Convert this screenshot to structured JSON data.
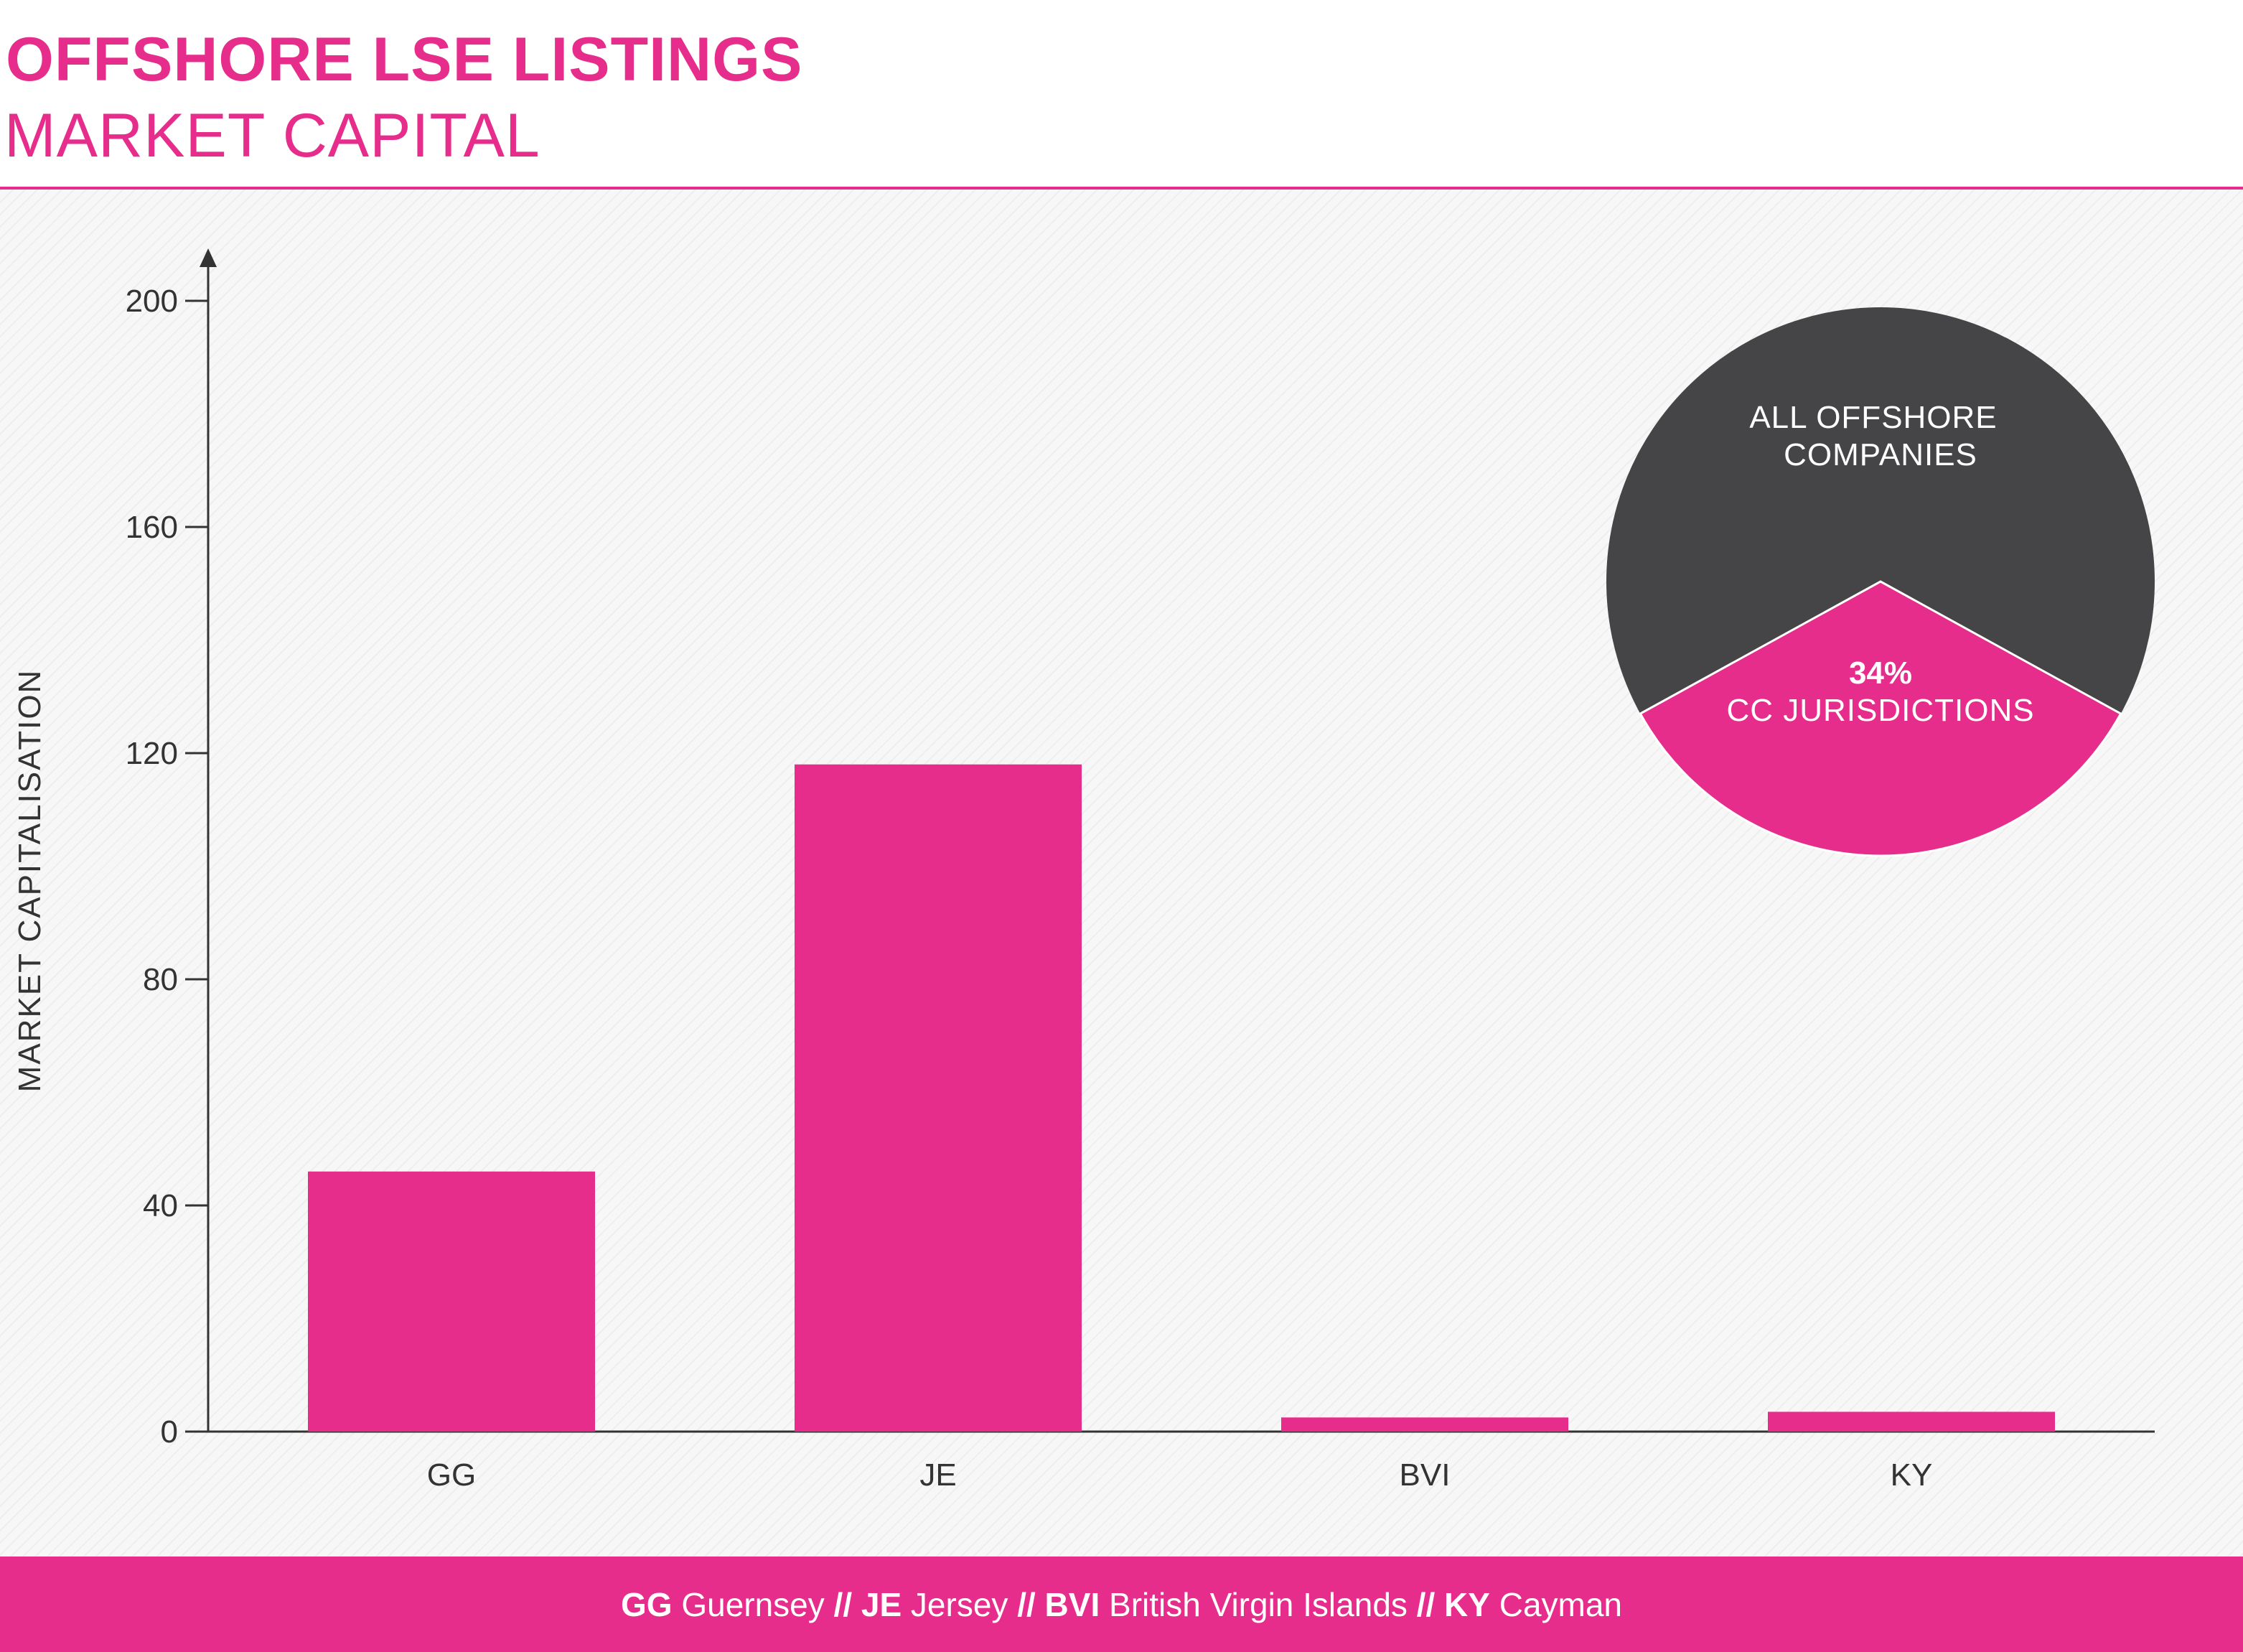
{
  "colors": {
    "accent": "#e62d8b",
    "dark": "#454547",
    "text": "#333333",
    "axis": "#333333"
  },
  "chart_data": {
    "type": "bar",
    "title": "OFFSHORE LSE LISTINGS",
    "subtitle": "MARKET CAPITAL",
    "ylabel": "MARKET CAPITALISATION",
    "xlabel": "",
    "categories": [
      "GG",
      "JE",
      "BVI",
      "KY"
    ],
    "values": [
      46,
      118,
      2.5,
      3.5
    ],
    "ylim": [
      0,
      200
    ],
    "yticks": [
      0,
      40,
      80,
      120,
      160,
      200
    ],
    "grid": false,
    "inset_pie": {
      "type": "pie",
      "slices": [
        {
          "label": "ALL OFFSHORE COMPANIES",
          "value": 66
        },
        {
          "label": "CC JURISDICTIONS",
          "value": 34,
          "value_label": "34%"
        }
      ]
    }
  },
  "footer": {
    "items": [
      {
        "code": "GG",
        "name": "Guernsey"
      },
      {
        "code": "JE",
        "name": "Jersey"
      },
      {
        "code": "BVI",
        "name": "British Virgin Islands"
      },
      {
        "code": "KY",
        "name": "Cayman"
      }
    ],
    "separator": "//"
  }
}
